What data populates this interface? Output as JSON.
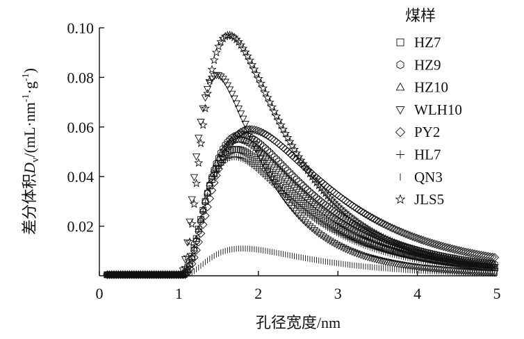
{
  "chart_data": {
    "type": "scatter",
    "xlabel": "孔径宽度/nm",
    "ylabel_prefix": "差分体积",
    "ylabel_var": "D",
    "ylabel_sub": "v",
    "ylabel_unit_open": "/(mL·nm",
    "ylabel_sup1": "-1",
    "ylabel_unit_mid": "·g",
    "ylabel_sup2": "-1",
    "ylabel_unit_close": ")",
    "xlim": [
      0,
      5
    ],
    "ylim": [
      0,
      0.1
    ],
    "x_ticks": [
      "0",
      "1",
      "2",
      "3",
      "4",
      "5"
    ],
    "y_ticks": [
      "0.02",
      "0.04",
      "0.06",
      "0.08",
      "0.10"
    ],
    "legend_title": "煤样",
    "legend_position": "top-right",
    "series": [
      {
        "name": "HZ7",
        "marker": "square",
        "peak_x": 1.72,
        "peak_y": 0.051
      },
      {
        "name": "HZ9",
        "marker": "hexagon",
        "peak_x": 1.78,
        "peak_y": 0.057
      },
      {
        "name": "HZ10",
        "marker": "triangle-up",
        "peak_x": 1.75,
        "peak_y": 0.055
      },
      {
        "name": "WLH10",
        "marker": "triangle-down",
        "peak_x": 1.48,
        "peak_y": 0.081
      },
      {
        "name": "PY2",
        "marker": "diamond",
        "peak_x": 1.9,
        "peak_y": 0.059
      },
      {
        "name": "HL7",
        "marker": "plus",
        "peak_x": 1.7,
        "peak_y": 0.048
      },
      {
        "name": "QN3",
        "marker": "vline",
        "peak_x": 1.8,
        "peak_y": 0.011
      },
      {
        "name": "JLS5",
        "marker": "star",
        "peak_x": 1.63,
        "peak_y": 0.097
      }
    ]
  }
}
